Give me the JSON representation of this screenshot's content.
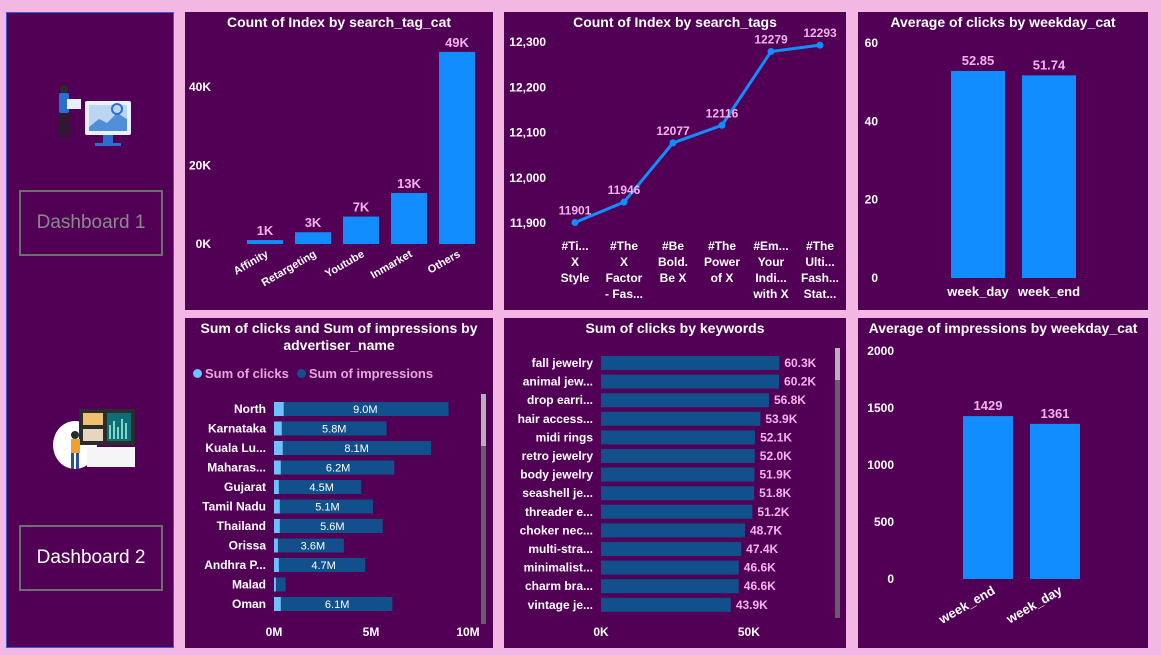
{
  "sidebar": {
    "buttons": [
      "Dashboard 1",
      "Dashboard 2"
    ]
  },
  "charts": {
    "c1": {
      "title": "Count of Index by search_tag_cat"
    },
    "c2": {
      "title": "Count of Index by search_tags"
    },
    "c3": {
      "title": "Average of clicks by weekday_cat"
    },
    "c4": {
      "title_line1": "Sum of clicks and Sum of impressions by",
      "title_line2": "advertiser_name",
      "legend": [
        "Sum of clicks",
        "Sum of impressions"
      ]
    },
    "c5": {
      "title": "Sum of clicks by keywords"
    },
    "c6": {
      "title": "Average of impressions by weekday_cat"
    }
  },
  "colors": {
    "bar": "#118dff",
    "dark_bar": "#12508c",
    "light_bar": "#6fc0ff",
    "label": "#f2b3ec",
    "background": "#520055",
    "page": "#f2b8e3"
  },
  "chart_data": [
    {
      "type": "bar",
      "title": "Count of Index by search_tag_cat",
      "categories": [
        "Affinity",
        "Retargeting",
        "Youtube",
        "Inmarket",
        "Others"
      ],
      "values": [
        1000,
        3000,
        7000,
        13000,
        49000
      ],
      "data_labels": [
        "1K",
        "3K",
        "7K",
        "13K",
        "49K"
      ],
      "yticks": [
        "0K",
        "20K",
        "40K"
      ],
      "ylim": [
        0,
        50000
      ]
    },
    {
      "type": "line",
      "title": "Count of Index by search_tags",
      "categories": [
        [
          "#Ti...",
          "X",
          "Style"
        ],
        [
          "#The",
          "X",
          "Factor",
          "- Fas..."
        ],
        [
          "#Be",
          "Bold.",
          "Be X"
        ],
        [
          "#The",
          "Power",
          "of X"
        ],
        [
          "#Em...",
          "Your",
          "Indi...",
          "with X"
        ],
        [
          "#The",
          "Ulti...",
          "Fash...",
          "Stat..."
        ]
      ],
      "values": [
        11901,
        11946,
        12077,
        12116,
        12279,
        12293
      ],
      "yticks": [
        "11,900",
        "12,000",
        "12,100",
        "12,200",
        "12,300"
      ],
      "ylim": [
        11900,
        12300
      ]
    },
    {
      "type": "bar",
      "title": "Average of clicks by weekday_cat",
      "categories": [
        "week_day",
        "week_end"
      ],
      "values": [
        52.85,
        51.74
      ],
      "yticks": [
        "0",
        "20",
        "40",
        "60"
      ],
      "ylim": [
        0,
        60
      ]
    },
    {
      "type": "bar",
      "orientation": "horizontal",
      "title": "Sum of clicks and Sum of impressions by advertiser_name",
      "categories": [
        "North",
        "Karnataka",
        "Kuala Lu...",
        "Maharas...",
        "Gujarat",
        "Tamil Nadu",
        "Thailand",
        "Orissa",
        "Andhra P...",
        "Malad",
        "Oman"
      ],
      "series": [
        {
          "name": "Sum of clicks",
          "values": [
            500000,
            400000,
            450000,
            350000,
            250000,
            300000,
            300000,
            200000,
            250000,
            100000,
            350000
          ]
        },
        {
          "name": "Sum of impressions",
          "values": [
            9000000,
            5800000,
            8100000,
            6200000,
            4500000,
            5100000,
            5600000,
            3600000,
            4700000,
            600000,
            6100000
          ],
          "data_labels": [
            "9.0M",
            "5.8M",
            "8.1M",
            "6.2M",
            "4.5M",
            "5.1M",
            "5.6M",
            "3.6M",
            "4.7M",
            "",
            "6.1M"
          ]
        }
      ],
      "xticks": [
        "0M",
        "5M",
        "10M"
      ],
      "xlim": [
        0,
        10000000
      ]
    },
    {
      "type": "bar",
      "orientation": "horizontal",
      "title": "Sum of clicks by keywords",
      "categories": [
        "fall jewelry",
        "animal jew...",
        "drop earri...",
        "hair access...",
        "midi rings",
        "retro jewelry",
        "body jewelry",
        "seashell je...",
        "threader e...",
        "choker nec...",
        "multi-stra...",
        "minimalist...",
        "charm bra...",
        "vintage je..."
      ],
      "values": [
        60300,
        60200,
        56800,
        53900,
        52100,
        52000,
        51900,
        51800,
        51200,
        48700,
        47400,
        46600,
        46600,
        43900
      ],
      "data_labels": [
        "60.3K",
        "60.2K",
        "56.8K",
        "53.9K",
        "52.1K",
        "52.0K",
        "51.9K",
        "51.8K",
        "51.2K",
        "48.7K",
        "47.4K",
        "46.6K",
        "46.6K",
        "43.9K"
      ],
      "xticks": [
        "0K",
        "50K"
      ],
      "xlim": [
        0,
        70000
      ]
    },
    {
      "type": "bar",
      "title": "Average of impressions by weekday_cat",
      "categories": [
        "week_end",
        "week_day"
      ],
      "values": [
        1429,
        1361
      ],
      "yticks": [
        "0",
        "500",
        "1000",
        "1500",
        "2000"
      ],
      "ylim": [
        0,
        2000
      ]
    }
  ]
}
